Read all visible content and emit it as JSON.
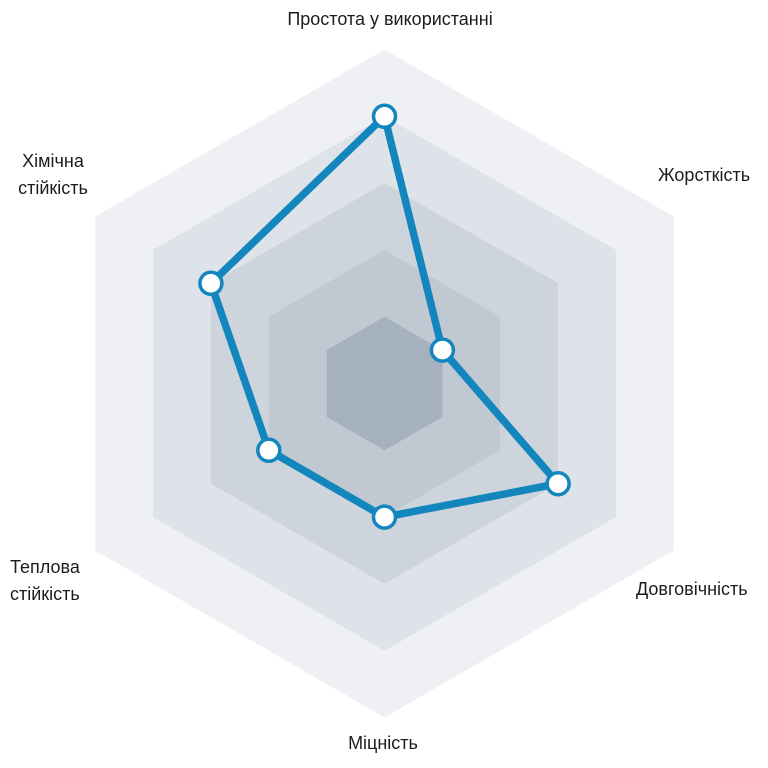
{
  "page": {
    "background_color": "#ffffff"
  },
  "chart_data": {
    "type": "radar",
    "grid_shape": "hexagon",
    "grid_rings": 5,
    "scale": {
      "min": 0,
      "max": 5
    },
    "axes": [
      {
        "label": "Простота у використанні",
        "value": 4
      },
      {
        "label": "Жорсткість",
        "value": 1
      },
      {
        "label": "Довговічність",
        "value": 3
      },
      {
        "label": "Міцність",
        "value": 2
      },
      {
        "label": "Теплова стійкість",
        "value": 2
      },
      {
        "label": "Хімічна стійкість",
        "value": 3
      }
    ],
    "series": [
      {
        "values": [
          4,
          1,
          3,
          2,
          2,
          3
        ],
        "line_color": "#1386be",
        "marker_fill": "#ffffff",
        "marker_outline": "#1386be"
      }
    ],
    "ring_colors_outer_to_inner": [
      "#eef0f3",
      "#dee3e9",
      "#cdd4dc",
      "#c0c9d2",
      "#a6b1bf"
    ],
    "label_color": "#1c1c1c"
  }
}
